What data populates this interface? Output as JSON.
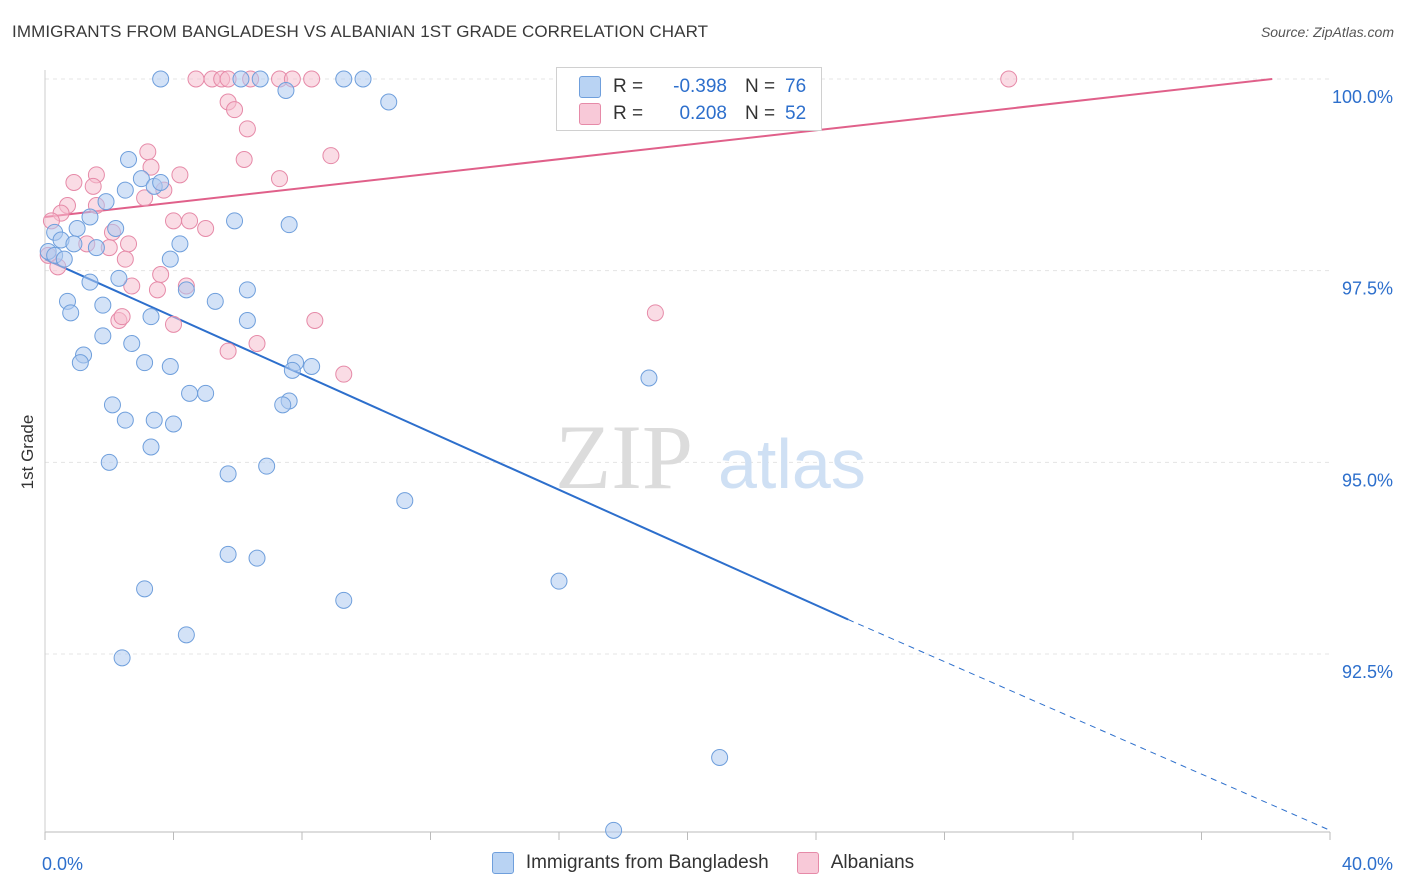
{
  "title": "IMMIGRANTS FROM BANGLADESH VS ALBANIAN 1ST GRADE CORRELATION CHART",
  "source": "Source: ZipAtlas.com",
  "watermark": {
    "zip": "ZIP",
    "atlas": "atlas"
  },
  "legend": {
    "rows": [
      {
        "r_label": "R =",
        "r_value": "-0.398",
        "n_label": "N =",
        "n_value": "76"
      },
      {
        "r_label": "R =",
        "r_value": "0.208",
        "n_label": "N =",
        "n_value": "52"
      }
    ]
  },
  "colors": {
    "blue_fill": "#aecbf0",
    "blue_stroke": "#6f9fdc",
    "blue_line": "#2d6fcc",
    "pink_fill": "#f6bfd0",
    "pink_stroke": "#e68aa8",
    "pink_line": "#e0608a",
    "tick_text": "#2d6fcc",
    "grid": "#e4e4e4"
  },
  "chart_data": {
    "type": "scatter",
    "title": "IMMIGRANTS FROM BANGLADESH VS ALBANIAN 1ST GRADE CORRELATION CHART",
    "xlabel": "",
    "ylabel": "1st Grade",
    "xlim": [
      0,
      40
    ],
    "ylim": [
      90.1,
      100.2
    ],
    "x_tick_labels": [
      "0.0%",
      "40.0%"
    ],
    "y_ticks": [
      92.5,
      95.0,
      97.5,
      100.0
    ],
    "y_tick_labels": [
      "92.5%",
      "95.0%",
      "97.5%",
      "100.0%"
    ],
    "grid": true,
    "legend_position": "bottom",
    "series": [
      {
        "name": "Immigrants from Bangladesh",
        "color": "#6f9fdc",
        "trend": {
          "x": [
            0.0,
            25.0
          ],
          "y": [
            97.65,
            92.95
          ],
          "dashed_to": [
            40.0,
            90.2
          ]
        },
        "points": [
          [
            3.6,
            100.0
          ],
          [
            6.1,
            100.0
          ],
          [
            6.7,
            100.0
          ],
          [
            7.5,
            99.85
          ],
          [
            9.3,
            100.0
          ],
          [
            9.9,
            100.0
          ],
          [
            10.7,
            99.7
          ],
          [
            2.6,
            98.95
          ],
          [
            3.0,
            98.7
          ],
          [
            3.4,
            98.6
          ],
          [
            3.6,
            98.65
          ],
          [
            2.5,
            98.55
          ],
          [
            1.9,
            98.4
          ],
          [
            1.4,
            98.2
          ],
          [
            1.0,
            98.05
          ],
          [
            0.3,
            98.0
          ],
          [
            0.5,
            97.9
          ],
          [
            0.9,
            97.85
          ],
          [
            0.1,
            97.75
          ],
          [
            0.3,
            97.7
          ],
          [
            0.6,
            97.65
          ],
          [
            1.6,
            97.8
          ],
          [
            2.2,
            98.05
          ],
          [
            5.9,
            98.15
          ],
          [
            7.6,
            98.1
          ],
          [
            4.2,
            97.85
          ],
          [
            3.9,
            97.65
          ],
          [
            1.4,
            97.35
          ],
          [
            2.3,
            97.4
          ],
          [
            1.8,
            97.05
          ],
          [
            0.7,
            97.1
          ],
          [
            0.8,
            96.95
          ],
          [
            4.4,
            97.25
          ],
          [
            5.3,
            97.1
          ],
          [
            6.3,
            97.25
          ],
          [
            3.3,
            96.9
          ],
          [
            6.3,
            96.85
          ],
          [
            1.8,
            96.65
          ],
          [
            2.7,
            96.55
          ],
          [
            1.2,
            96.4
          ],
          [
            1.1,
            96.3
          ],
          [
            3.1,
            96.3
          ],
          [
            3.9,
            96.25
          ],
          [
            7.8,
            96.3
          ],
          [
            8.3,
            96.25
          ],
          [
            7.7,
            96.2
          ],
          [
            18.8,
            96.1
          ],
          [
            5.0,
            95.9
          ],
          [
            4.5,
            95.9
          ],
          [
            2.1,
            95.75
          ],
          [
            7.6,
            95.8
          ],
          [
            7.4,
            95.75
          ],
          [
            2.5,
            95.55
          ],
          [
            3.4,
            95.55
          ],
          [
            4.0,
            95.5
          ],
          [
            3.3,
            95.2
          ],
          [
            2.0,
            95.0
          ],
          [
            6.9,
            94.95
          ],
          [
            5.7,
            94.85
          ],
          [
            11.2,
            94.5
          ],
          [
            5.7,
            93.8
          ],
          [
            6.6,
            93.75
          ],
          [
            16.0,
            93.45
          ],
          [
            3.1,
            93.35
          ],
          [
            9.3,
            93.2
          ],
          [
            4.4,
            92.75
          ],
          [
            2.4,
            92.45
          ],
          [
            21.0,
            91.15
          ],
          [
            17.7,
            90.2
          ]
        ]
      },
      {
        "name": "Albanians",
        "color": "#e68aa8",
        "trend": {
          "x": [
            0.0,
            38.2
          ],
          "y": [
            98.2,
            100.0
          ]
        },
        "points": [
          [
            4.7,
            100.0
          ],
          [
            5.2,
            100.0
          ],
          [
            5.5,
            100.0
          ],
          [
            5.7,
            100.0
          ],
          [
            6.4,
            100.0
          ],
          [
            7.3,
            100.0
          ],
          [
            7.7,
            100.0
          ],
          [
            8.3,
            100.0
          ],
          [
            30.0,
            100.0
          ],
          [
            5.7,
            99.7
          ],
          [
            5.9,
            99.6
          ],
          [
            6.3,
            99.35
          ],
          [
            3.2,
            99.05
          ],
          [
            8.9,
            99.0
          ],
          [
            6.2,
            98.95
          ],
          [
            3.3,
            98.85
          ],
          [
            4.2,
            98.75
          ],
          [
            7.3,
            98.7
          ],
          [
            1.6,
            98.75
          ],
          [
            0.9,
            98.65
          ],
          [
            1.5,
            98.6
          ],
          [
            3.7,
            98.55
          ],
          [
            3.1,
            98.45
          ],
          [
            0.7,
            98.35
          ],
          [
            1.6,
            98.35
          ],
          [
            0.5,
            98.25
          ],
          [
            0.2,
            98.15
          ],
          [
            4.0,
            98.15
          ],
          [
            4.5,
            98.15
          ],
          [
            5.0,
            98.05
          ],
          [
            2.1,
            98.0
          ],
          [
            1.3,
            97.85
          ],
          [
            2.6,
            97.85
          ],
          [
            2.0,
            97.8
          ],
          [
            0.1,
            97.7
          ],
          [
            2.5,
            97.65
          ],
          [
            0.4,
            97.55
          ],
          [
            3.6,
            97.45
          ],
          [
            2.7,
            97.3
          ],
          [
            4.4,
            97.3
          ],
          [
            3.5,
            97.25
          ],
          [
            19.0,
            96.95
          ],
          [
            2.3,
            96.85
          ],
          [
            2.4,
            96.9
          ],
          [
            4.0,
            96.8
          ],
          [
            8.4,
            96.85
          ],
          [
            6.6,
            96.55
          ],
          [
            5.7,
            96.45
          ],
          [
            9.3,
            96.15
          ]
        ]
      }
    ]
  }
}
